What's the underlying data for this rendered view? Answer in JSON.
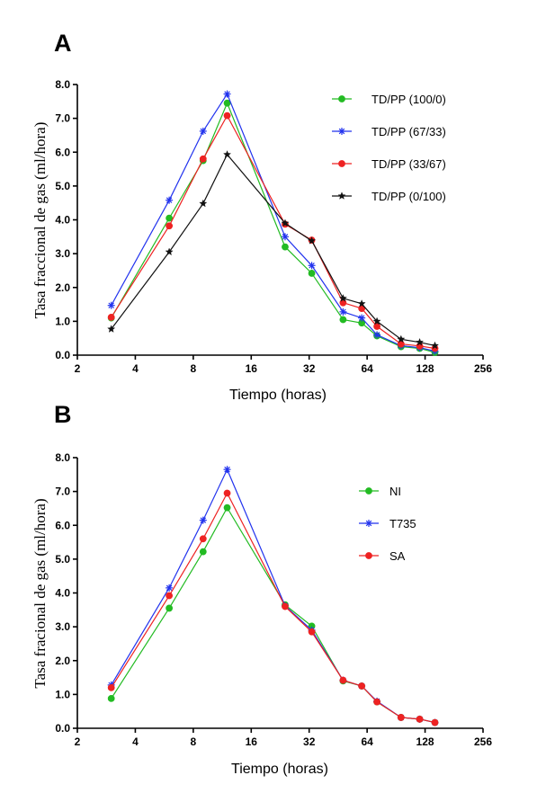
{
  "chart_data": [
    {
      "type": "line",
      "panel_label": "A",
      "xlabel": "Tiempo (horas)",
      "ylabel": "Tasa fraccional de gas (ml/hora)",
      "x_scale": "log2",
      "xlim": [
        2,
        256
      ],
      "ylim": [
        0,
        8
      ],
      "x_ticks": [
        2,
        4,
        8,
        16,
        32,
        64,
        128,
        256
      ],
      "x_tick_labels": [
        "2",
        "4",
        "8",
        "16",
        "32",
        "64",
        "128",
        "256"
      ],
      "y_ticks": [
        0,
        1,
        2,
        3,
        4,
        5,
        6,
        7,
        8
      ],
      "y_tick_labels": [
        "0.0",
        "1.0",
        "2.0",
        "3.0",
        "4.0",
        "5.0",
        "6.0",
        "7.0",
        "8.0"
      ],
      "grid": false,
      "legend_position": "top-right",
      "x": [
        3,
        6,
        9,
        12,
        24,
        33,
        48,
        60,
        72,
        96,
        120,
        144
      ],
      "series": [
        {
          "name": "TD/PP (100/0)",
          "color": "#22bb22",
          "marker": "circle",
          "values": [
            1.1,
            4.05,
            5.75,
            7.45,
            3.2,
            2.42,
            1.05,
            0.95,
            0.57,
            0.25,
            0.2,
            0.08
          ]
        },
        {
          "name": "TD/PP (67/33)",
          "color": "#2233ee",
          "marker": "asterisk",
          "values": [
            1.47,
            4.58,
            6.62,
            7.72,
            3.5,
            2.65,
            1.28,
            1.1,
            0.6,
            0.28,
            0.22,
            0.12
          ]
        },
        {
          "name": "TD/PP (33/67)",
          "color": "#ee2222",
          "marker": "circle",
          "values": [
            1.12,
            3.82,
            5.8,
            7.08,
            3.87,
            3.4,
            1.55,
            1.38,
            0.85,
            0.33,
            0.27,
            0.2
          ]
        },
        {
          "name": "TD/PP (0/100)",
          "color": "#111111",
          "marker": "star",
          "values": [
            0.77,
            3.05,
            4.48,
            5.93,
            3.9,
            3.38,
            1.68,
            1.52,
            1.0,
            0.47,
            0.38,
            0.28
          ]
        }
      ]
    },
    {
      "type": "line",
      "panel_label": "B",
      "xlabel": "Tiempo (horas)",
      "ylabel": "Tasa fracional de gas (ml/hora)",
      "x_scale": "log2",
      "xlim": [
        2,
        256
      ],
      "ylim": [
        0,
        8
      ],
      "x_ticks": [
        2,
        4,
        8,
        16,
        32,
        64,
        128,
        256
      ],
      "x_tick_labels": [
        "2",
        "4",
        "8",
        "16",
        "32",
        "64",
        "128",
        "256"
      ],
      "y_ticks": [
        0,
        1,
        2,
        3,
        4,
        5,
        6,
        7,
        8
      ],
      "y_tick_labels": [
        "0.0",
        "1.0",
        "2.0",
        "3.0",
        "4.0",
        "5.0",
        "6.0",
        "7.0",
        "8.0"
      ],
      "grid": false,
      "legend_position": "top-right",
      "x": [
        3,
        6,
        9,
        12,
        24,
        33,
        48,
        60,
        72,
        96,
        120,
        144
      ],
      "series": [
        {
          "name": "NI",
          "color": "#22bb22",
          "marker": "circle",
          "values": [
            0.88,
            3.55,
            5.22,
            6.52,
            3.65,
            3.02,
            1.4,
            1.25,
            0.78,
            0.32,
            0.27,
            0.17
          ]
        },
        {
          "name": "T735",
          "color": "#2233ee",
          "marker": "asterisk",
          "values": [
            1.28,
            4.15,
            6.15,
            7.65,
            3.62,
            2.9,
            1.42,
            1.25,
            0.8,
            0.32,
            0.27,
            0.17
          ]
        },
        {
          "name": "SA",
          "color": "#ee2222",
          "marker": "circle",
          "values": [
            1.2,
            3.92,
            5.6,
            6.95,
            3.6,
            2.85,
            1.42,
            1.25,
            0.78,
            0.32,
            0.27,
            0.17
          ]
        }
      ]
    }
  ]
}
